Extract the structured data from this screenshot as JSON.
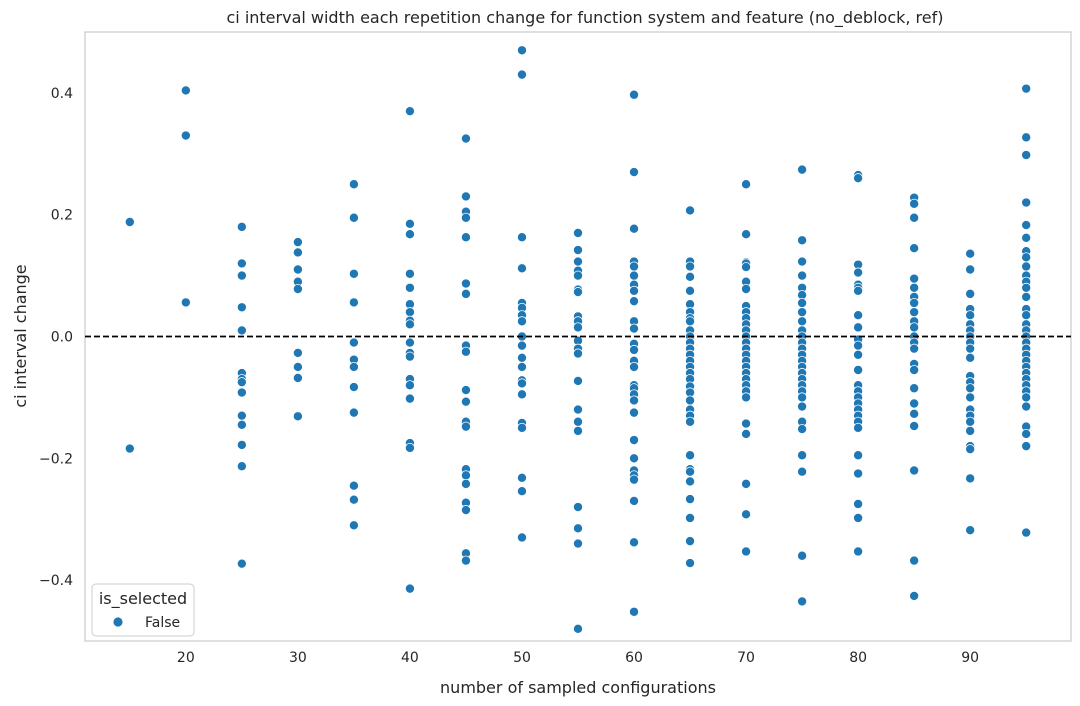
{
  "chart_data": {
    "type": "scatter",
    "title": "ci interval width each repetition change for function system and feature (no_deblock, ref)",
    "xlabel": "number of sampled configurations",
    "ylabel": "ci interval change",
    "xlim": [
      11,
      99
    ],
    "ylim": [
      -0.5,
      0.5
    ],
    "xticks": [
      20,
      30,
      40,
      50,
      60,
      70,
      80,
      90
    ],
    "yticks": [
      -0.4,
      -0.2,
      0.0,
      0.2,
      0.4
    ],
    "ytick_labels": [
      "−0.4",
      "−0.2",
      "0.0",
      "0.2",
      "0.4"
    ],
    "grid": false,
    "reference_line": {
      "y": 0.0,
      "style": "dashed",
      "color": "#000000"
    },
    "legend": {
      "title": "is_selected",
      "placement": "lower-left",
      "entries": [
        {
          "label": "False",
          "color": "#1f77b4"
        }
      ]
    },
    "colors": {
      "marker": "#1f77b4",
      "marker_edge": "#ffffff",
      "spine": "#cccccc"
    },
    "series": [
      {
        "name": "False",
        "points": [
          {
            "x": 15,
            "ys": [
              0.188,
              -0.184
            ]
          },
          {
            "x": 20,
            "ys": [
              0.404,
              0.33,
              0.056
            ]
          },
          {
            "x": 25,
            "ys": [
              0.18,
              0.12,
              0.1,
              0.048,
              0.01,
              -0.06,
              -0.07,
              -0.075,
              -0.092,
              -0.13,
              -0.145,
              -0.178,
              -0.213,
              -0.373
            ]
          },
          {
            "x": 30,
            "ys": [
              0.155,
              0.138,
              0.11,
              0.09,
              0.078,
              -0.027,
              -0.05,
              -0.068,
              -0.131
            ]
          },
          {
            "x": 35,
            "ys": [
              0.25,
              0.195,
              0.103,
              0.056,
              -0.01,
              -0.038,
              -0.05,
              -0.083,
              -0.125,
              -0.245,
              -0.268,
              -0.31
            ]
          },
          {
            "x": 40,
            "ys": [
              0.37,
              0.185,
              0.168,
              0.103,
              0.08,
              0.053,
              0.04,
              0.026,
              0.02,
              -0.01,
              -0.027,
              -0.033,
              -0.07,
              -0.08,
              -0.102,
              -0.175,
              -0.183,
              -0.414
            ]
          },
          {
            "x": 45,
            "ys": [
              0.325,
              0.23,
              0.205,
              0.195,
              0.163,
              0.087,
              0.07,
              -0.015,
              -0.025,
              -0.088,
              -0.107,
              -0.14,
              -0.148,
              -0.218,
              -0.228,
              -0.242,
              -0.273,
              -0.285,
              -0.356,
              -0.368
            ]
          },
          {
            "x": 50,
            "ys": [
              0.47,
              0.43,
              0.163,
              0.112,
              0.055,
              0.047,
              0.035,
              0.025,
              0.0,
              -0.015,
              -0.035,
              -0.05,
              -0.072,
              -0.077,
              -0.095,
              -0.142,
              -0.15,
              -0.232,
              -0.254,
              -0.33
            ]
          },
          {
            "x": 55,
            "ys": [
              0.17,
              0.142,
              0.123,
              0.108,
              0.1,
              0.077,
              0.073,
              0.033,
              0.025,
              0.015,
              -0.007,
              -0.02,
              -0.028,
              -0.073,
              -0.12,
              -0.14,
              -0.155,
              -0.28,
              -0.315,
              -0.34,
              -0.48
            ]
          },
          {
            "x": 60,
            "ys": [
              0.397,
              0.27,
              0.177,
              0.123,
              0.115,
              0.1,
              0.085,
              0.075,
              0.058,
              0.025,
              0.013,
              -0.012,
              -0.022,
              -0.04,
              -0.05,
              -0.08,
              -0.085,
              -0.095,
              -0.105,
              -0.125,
              -0.17,
              -0.2,
              -0.22,
              -0.228,
              -0.235,
              -0.27,
              -0.338,
              -0.452
            ]
          },
          {
            "x": 65,
            "ys": [
              0.207,
              0.123,
              0.115,
              0.098,
              0.075,
              0.053,
              0.04,
              0.03,
              0.025,
              0.01,
              0.0,
              -0.01,
              -0.02,
              -0.03,
              -0.04,
              -0.05,
              -0.06,
              -0.07,
              -0.082,
              -0.092,
              -0.105,
              -0.12,
              -0.13,
              -0.14,
              -0.195,
              -0.218,
              -0.222,
              -0.238,
              -0.267,
              -0.298,
              -0.336,
              -0.372
            ]
          },
          {
            "x": 70,
            "ys": [
              0.25,
              0.168,
              0.122,
              0.12,
              0.114,
              0.09,
              0.078,
              0.05,
              0.04,
              0.03,
              0.02,
              0.01,
              0.0,
              -0.01,
              -0.02,
              -0.03,
              -0.04,
              -0.05,
              -0.06,
              -0.07,
              -0.08,
              -0.09,
              -0.1,
              -0.143,
              -0.16,
              -0.242,
              -0.292,
              -0.353
            ]
          },
          {
            "x": 75,
            "ys": [
              0.274,
              0.158,
              0.123,
              0.1,
              0.08,
              0.068,
              0.055,
              0.04,
              0.025,
              0.01,
              0.0,
              -0.01,
              -0.02,
              -0.03,
              -0.04,
              -0.05,
              -0.06,
              -0.07,
              -0.08,
              -0.09,
              -0.1,
              -0.115,
              -0.14,
              -0.152,
              -0.195,
              -0.222,
              -0.36,
              -0.435
            ]
          },
          {
            "x": 80,
            "ys": [
              0.265,
              0.26,
              0.118,
              0.105,
              0.085,
              0.08,
              0.075,
              0.035,
              0.015,
              -0.005,
              -0.015,
              -0.03,
              -0.055,
              -0.08,
              -0.09,
              -0.1,
              -0.11,
              -0.12,
              -0.13,
              -0.14,
              -0.15,
              -0.195,
              -0.225,
              -0.275,
              -0.298,
              -0.353
            ]
          },
          {
            "x": 85,
            "ys": [
              0.228,
              0.218,
              0.195,
              0.145,
              0.095,
              0.08,
              0.065,
              0.055,
              0.04,
              0.025,
              0.015,
              0.0,
              -0.01,
              -0.02,
              -0.045,
              -0.055,
              -0.085,
              -0.11,
              -0.127,
              -0.147,
              -0.22,
              -0.368,
              -0.426
            ]
          },
          {
            "x": 90,
            "ys": [
              0.136,
              0.11,
              0.07,
              0.045,
              0.035,
              0.02,
              0.01,
              0.0,
              -0.01,
              -0.02,
              -0.035,
              -0.065,
              -0.075,
              -0.085,
              -0.1,
              -0.12,
              -0.13,
              -0.14,
              -0.155,
              -0.18,
              -0.185,
              -0.233,
              -0.318
            ]
          },
          {
            "x": 95,
            "ys": [
              0.407,
              0.327,
              0.298,
              0.22,
              0.183,
              0.162,
              0.14,
              0.13,
              0.115,
              0.1,
              0.09,
              0.08,
              0.065,
              0.045,
              0.035,
              0.02,
              0.01,
              0.0,
              -0.01,
              -0.02,
              -0.03,
              -0.04,
              -0.05,
              -0.06,
              -0.07,
              -0.08,
              -0.09,
              -0.1,
              -0.115,
              -0.148,
              -0.16,
              -0.18,
              -0.322
            ]
          }
        ]
      }
    ]
  }
}
